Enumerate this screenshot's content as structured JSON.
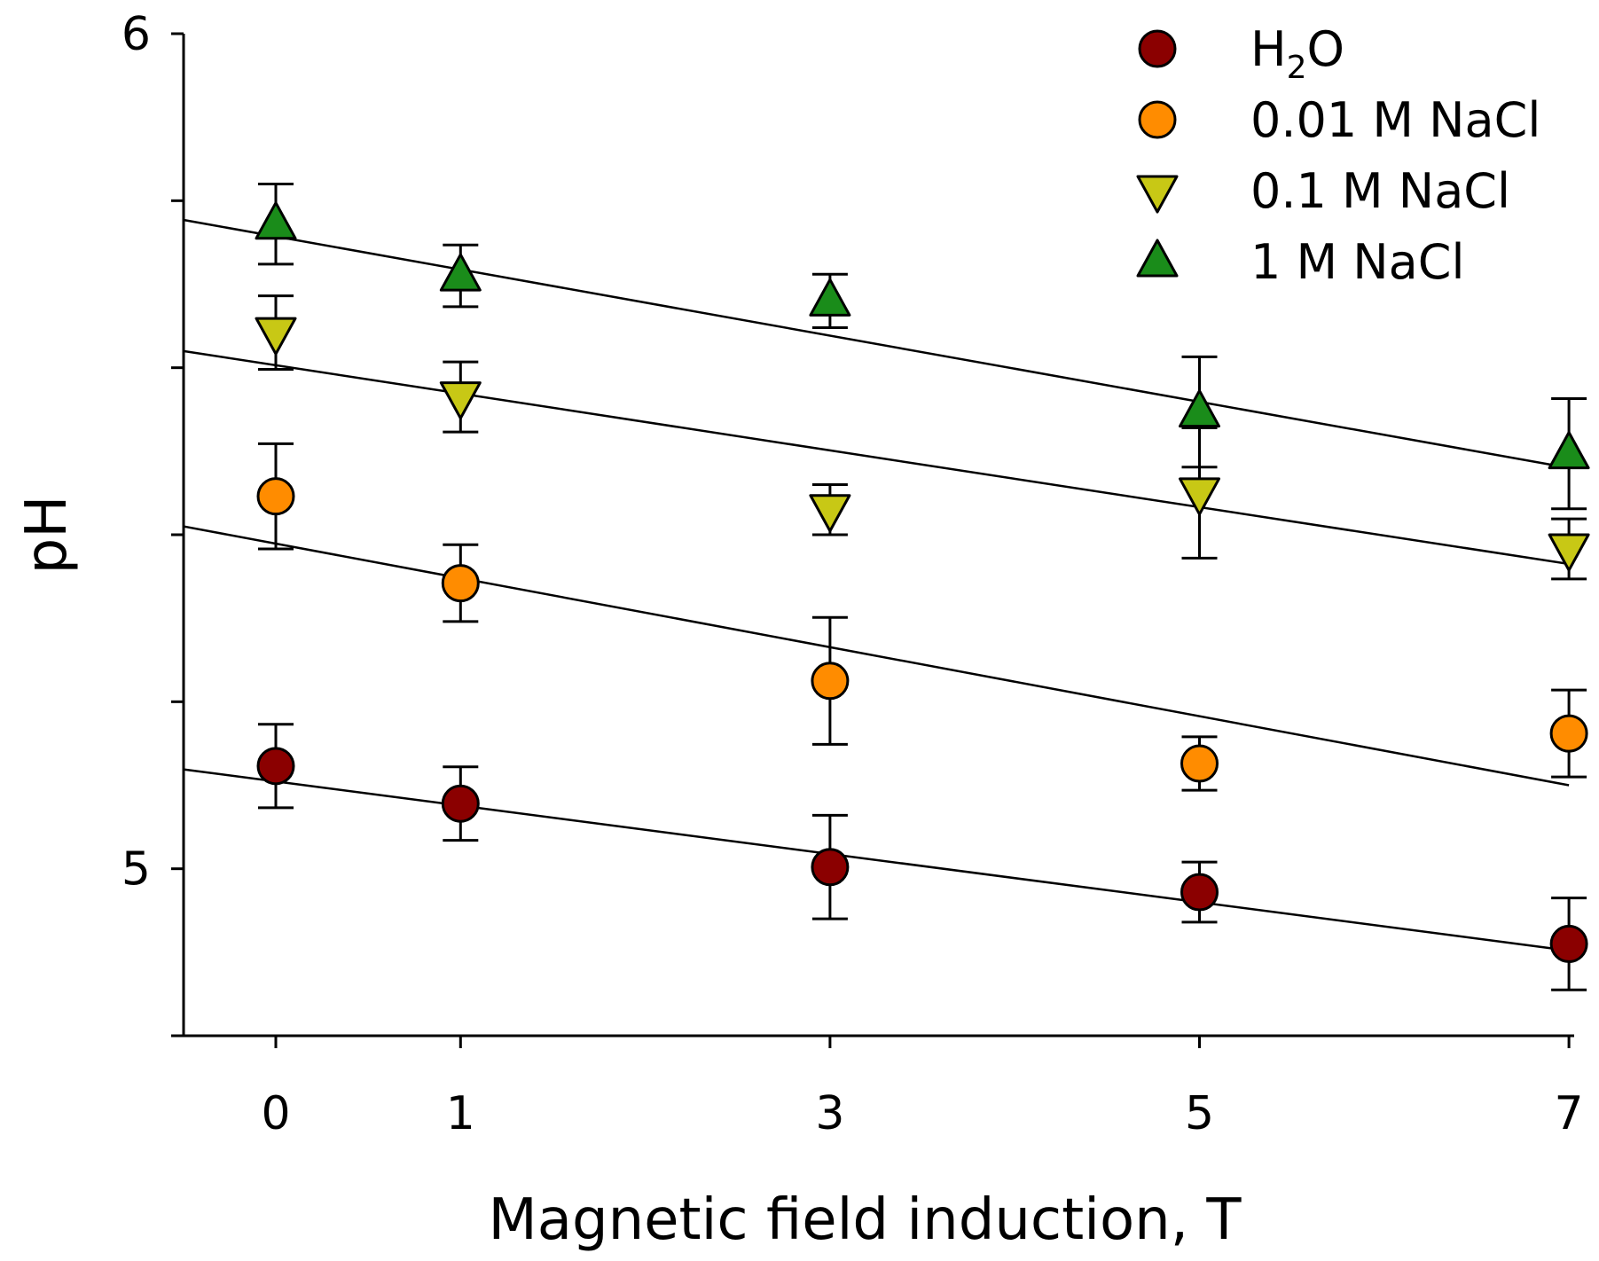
{
  "chart_data": {
    "type": "scatter",
    "title": "",
    "xlabel": "Magnetic field induction, T",
    "ylabel": "pH",
    "xlim": [
      -0.5,
      7
    ],
    "ylim": [
      4.8,
      6.0
    ],
    "xticks": [
      0,
      1,
      3,
      5,
      7
    ],
    "xtick_labels": [
      "0",
      "1",
      "3",
      "5",
      "7"
    ],
    "yticks": [
      4.8,
      5.0,
      5.2,
      5.4,
      5.6,
      5.8,
      6.0
    ],
    "ytick_labels": [
      "",
      "5",
      "",
      "",
      "",
      "",
      "6"
    ],
    "grid": false,
    "legend_position": "top-right",
    "series": [
      {
        "name": "H2O",
        "legend": {
          "main": "H",
          "sub": "2",
          "tail": "O"
        },
        "marker": "circle",
        "color": "#8b0000",
        "x": [
          0,
          1,
          3,
          5,
          7
        ],
        "y": [
          5.123,
          5.078,
          5.002,
          4.972,
          4.91
        ],
        "err": [
          0.05,
          0.044,
          0.062,
          0.036,
          0.055
        ],
        "fit": {
          "x": [
            -0.5,
            7
          ],
          "y": [
            5.119,
            4.902
          ]
        }
      },
      {
        "name": "0.01 M NaCl",
        "legend": {
          "main": "0.01 M NaCl",
          "sub": "",
          "tail": ""
        },
        "marker": "circle",
        "color": "#ff8c00",
        "x": [
          0,
          1,
          3,
          5,
          7
        ],
        "y": [
          5.446,
          5.342,
          5.225,
          5.126,
          5.162
        ],
        "err": [
          0.063,
          0.046,
          0.076,
          0.032,
          0.052
        ],
        "fit": {
          "x": [
            -0.5,
            7
          ],
          "y": [
            5.41,
            5.1
          ]
        }
      },
      {
        "name": "0.1 M NaCl",
        "legend": {
          "main": "0.1 M NaCl",
          "sub": "",
          "tail": ""
        },
        "marker": "triangle-down",
        "color": "#c8c815",
        "x": [
          0,
          1,
          3,
          5,
          7
        ],
        "y": [
          5.642,
          5.565,
          5.43,
          5.45,
          5.383
        ],
        "err": [
          0.044,
          0.042,
          0.03,
          0.078,
          0.036
        ],
        "fit": {
          "x": [
            -0.5,
            7
          ],
          "y": [
            5.62,
            5.365
          ]
        }
      },
      {
        "name": "1 M NaCl",
        "legend": {
          "main": "1 M NaCl",
          "sub": "",
          "tail": ""
        },
        "marker": "triangle-up",
        "color": "#1a8c1a",
        "x": [
          0,
          1,
          3,
          5,
          7
        ],
        "y": [
          5.772,
          5.71,
          5.68,
          5.547,
          5.497
        ],
        "err": [
          0.048,
          0.037,
          0.032,
          0.066,
          0.066
        ],
        "fit": {
          "x": [
            -0.5,
            7
          ],
          "y": [
            5.777,
            5.48
          ]
        }
      }
    ]
  }
}
